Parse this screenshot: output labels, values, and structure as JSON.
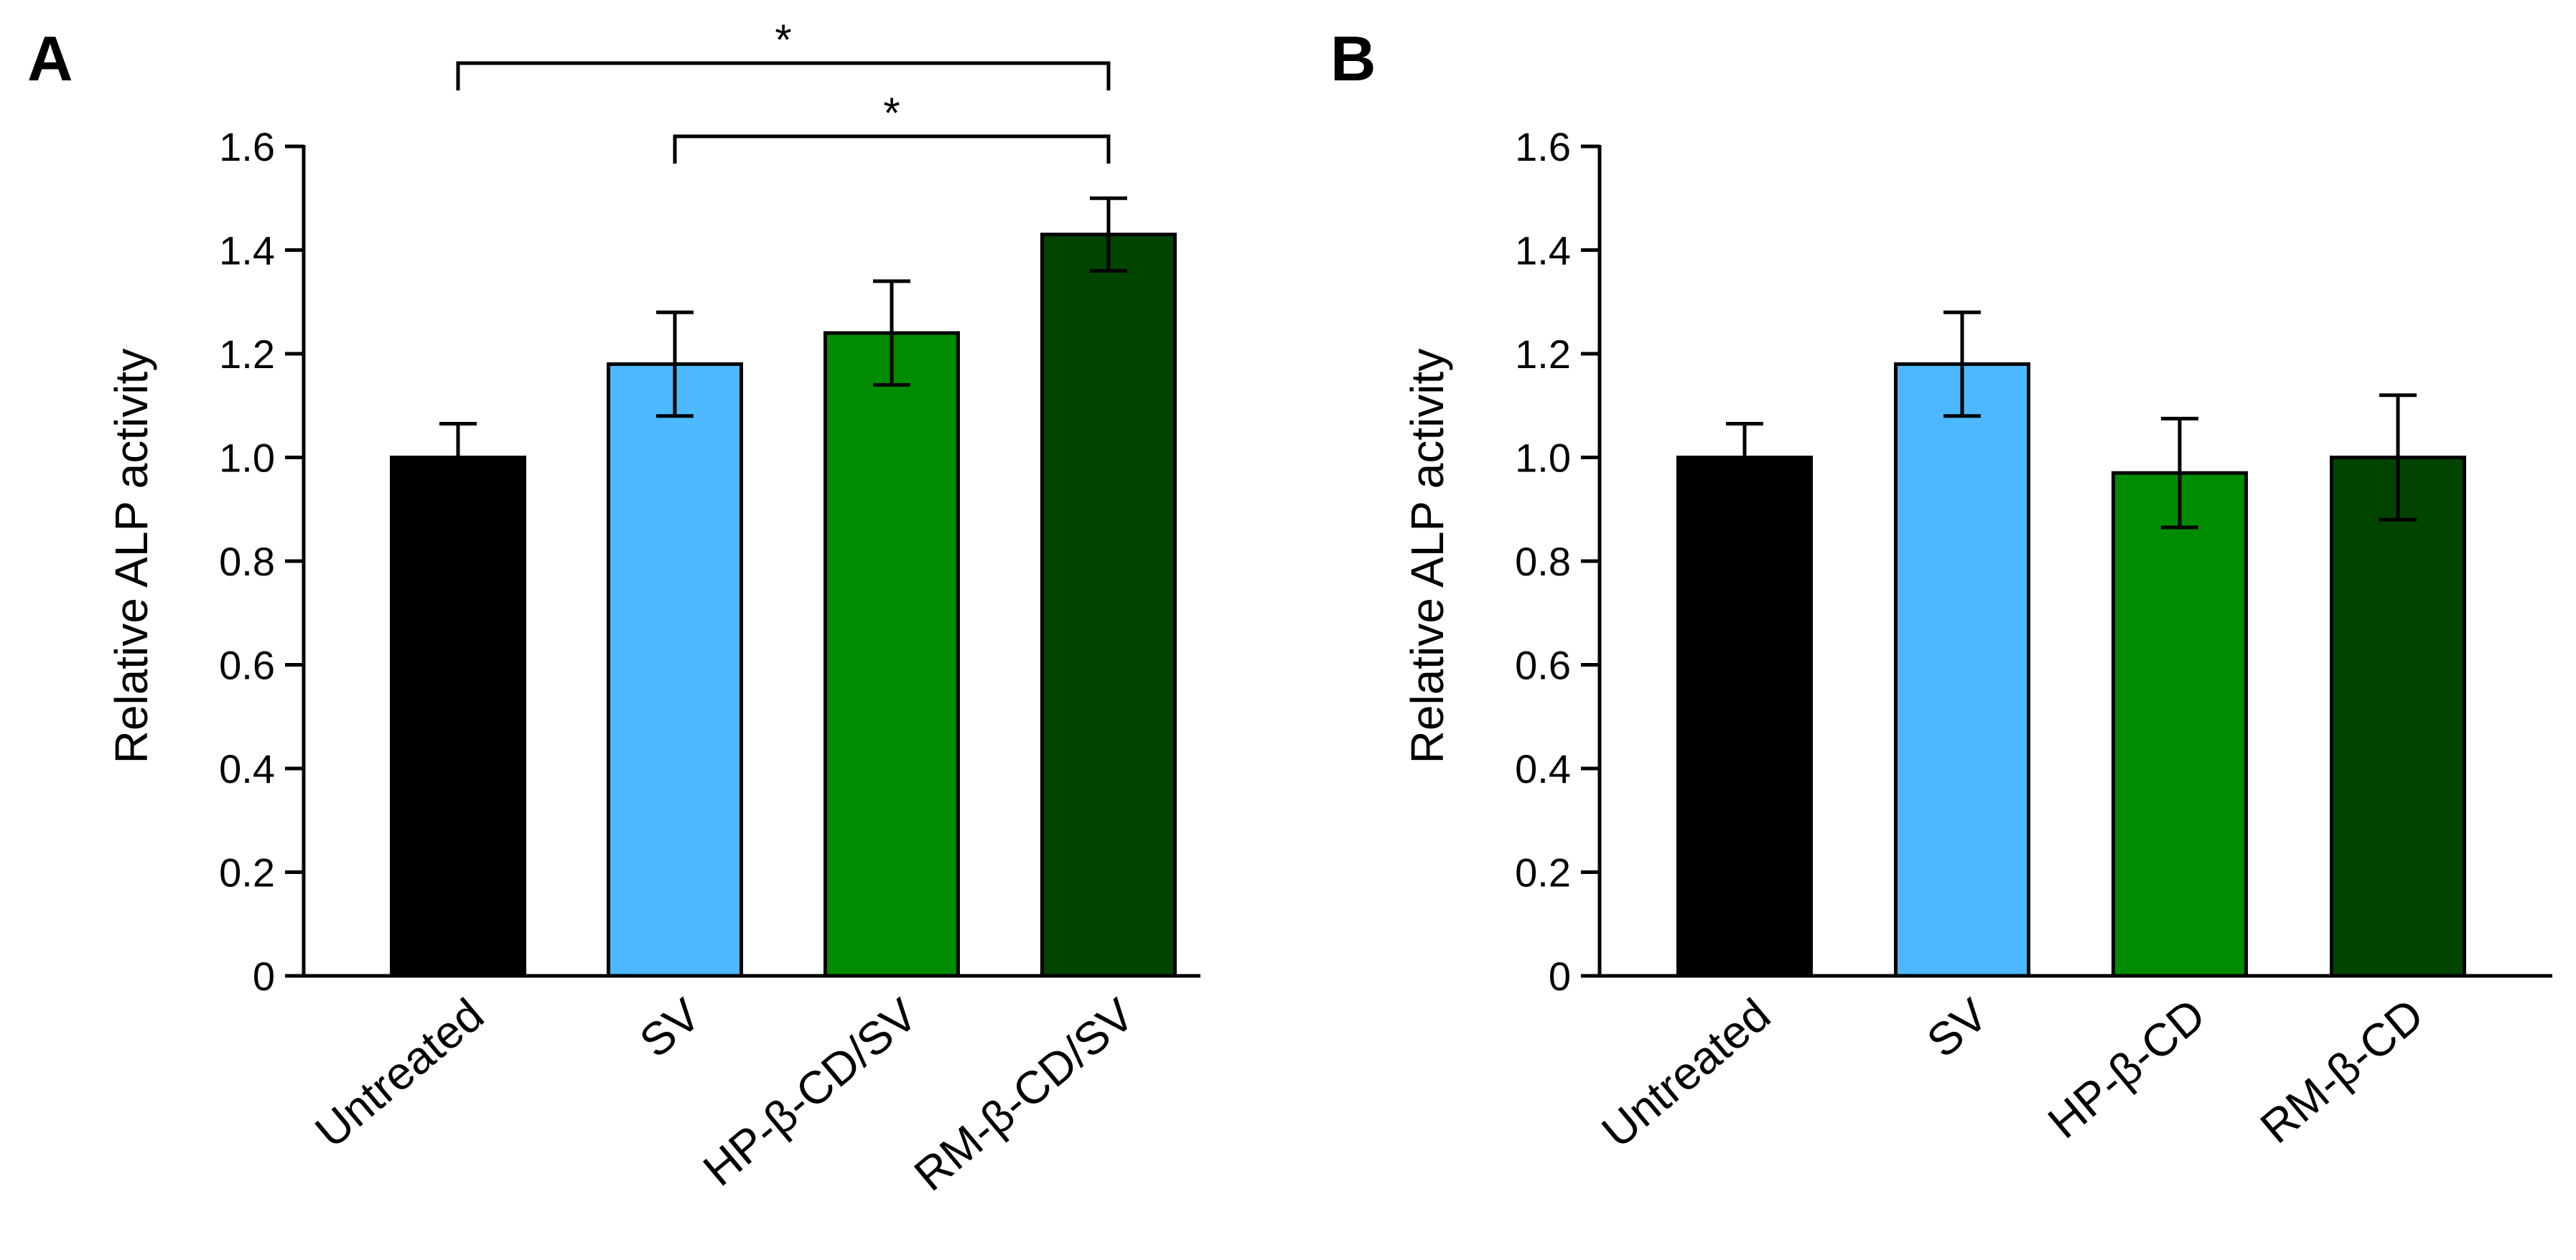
{
  "chart_data": [
    {
      "type": "bar",
      "panel": "A",
      "ylabel": "Relative ALP activity",
      "xlabel": "",
      "ylim": [
        0,
        1.6
      ],
      "yticks": [
        "0",
        "0.2",
        "0.4",
        "0.6",
        "0.8",
        "1.0",
        "1.2",
        "1.4",
        "1.6"
      ],
      "categories": [
        "Untreated",
        "SV",
        "HP-β-CD/SV",
        "RM-β-CD/SV"
      ],
      "values": [
        1.0,
        1.18,
        1.24,
        1.43
      ],
      "errors": [
        0.065,
        0.1,
        0.1,
        0.07
      ],
      "colors": [
        "#000000",
        "#4db8ff",
        "#008c00",
        "#004400"
      ],
      "significance": [
        {
          "from": 0,
          "to": 3,
          "label": "*"
        },
        {
          "from": 1,
          "to": 3,
          "label": "*"
        }
      ]
    },
    {
      "type": "bar",
      "panel": "B",
      "ylabel": "Relative ALP activity",
      "xlabel": "",
      "ylim": [
        0,
        1.6
      ],
      "yticks": [
        "0",
        "0.2",
        "0.4",
        "0.6",
        "0.8",
        "1.0",
        "1.2",
        "1.4",
        "1.6"
      ],
      "categories": [
        "Untreated",
        "SV",
        "HP-β-CD",
        "RM-β-CD"
      ],
      "values": [
        1.0,
        1.18,
        0.97,
        1.0
      ],
      "errors": [
        0.065,
        0.1,
        0.105,
        0.12
      ],
      "colors": [
        "#000000",
        "#4db8ff",
        "#008c00",
        "#004400"
      ],
      "significance": []
    }
  ]
}
